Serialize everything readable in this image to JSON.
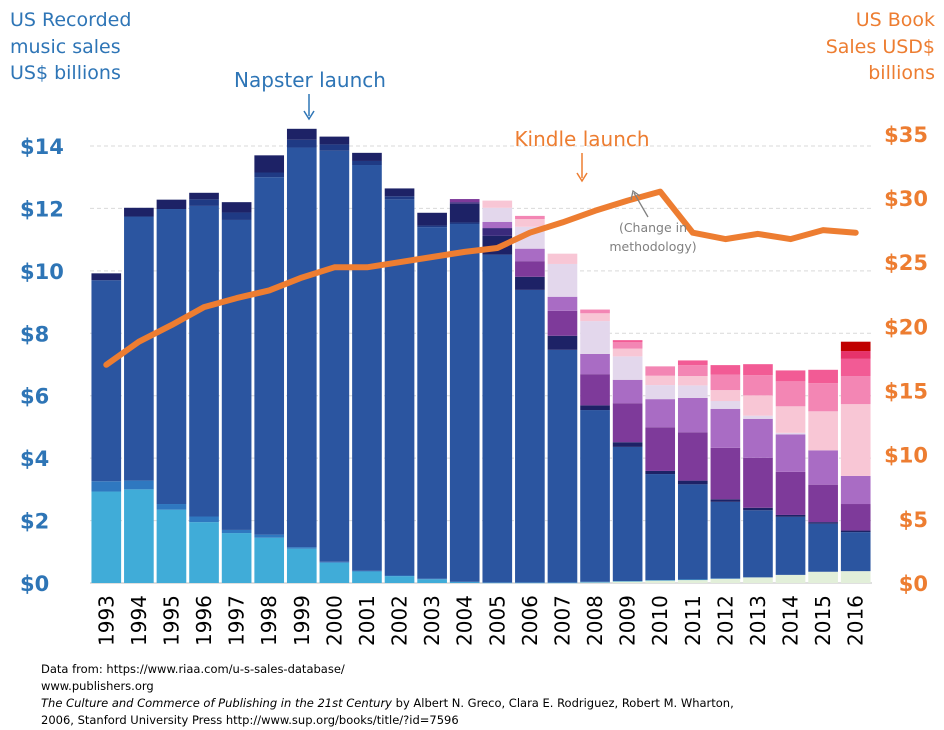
{
  "chart_data": {
    "type": "bar",
    "stacked": true,
    "dual_axis": true,
    "left_axis": {
      "title_lines": [
        "US Recorded",
        "music sales",
        "US$ billions"
      ],
      "ticks": [
        "$0",
        "$2",
        "$4",
        "$6",
        "$8",
        "$10",
        "$12",
        "$14"
      ],
      "ylim": [
        0,
        14.8
      ]
    },
    "right_axis": {
      "title_lines": [
        "US Book",
        "Sales USD$",
        "billions"
      ],
      "ticks": [
        "$0",
        "$5",
        "$10",
        "$15",
        "$20",
        "$25",
        "$30",
        "$35"
      ],
      "ylim": [
        0,
        36
      ]
    },
    "grid": true,
    "categories": [
      "1993",
      "1994",
      "1995",
      "1996",
      "1997",
      "1998",
      "1999",
      "2000",
      "2001",
      "2002",
      "2003",
      "2004",
      "2005",
      "2006",
      "2007",
      "2008",
      "2009",
      "2010",
      "2011",
      "2012",
      "2013",
      "2014",
      "2015",
      "2016"
    ],
    "segment_colors": [
      "#e2efd9",
      "#40acd8",
      "#2f78c0",
      "#2b55a0",
      "#1f3a84",
      "#1d2266",
      "#3a2a7c",
      "#7e3a9a",
      "#a96cc4",
      "#e3d7ec",
      "#f8c6d5",
      "#f386b4",
      "#f25b95",
      "#e6336b",
      "#c00000"
    ],
    "music_bars": [
      {
        "year": "1993",
        "segments": [
          [
            0,
            0
          ],
          [
            1,
            2.93
          ],
          [
            2,
            0.33
          ],
          [
            3,
            6.44
          ],
          [
            5,
            0.22
          ]
        ]
      },
      {
        "year": "1994",
        "segments": [
          [
            0,
            0
          ],
          [
            1,
            3.0
          ],
          [
            2,
            0.28
          ],
          [
            3,
            8.46
          ],
          [
            5,
            0.28
          ]
        ]
      },
      {
        "year": "1995",
        "segments": [
          [
            0,
            0
          ],
          [
            1,
            2.35
          ],
          [
            2,
            0.18
          ],
          [
            3,
            9.45
          ],
          [
            5,
            0.3
          ]
        ]
      },
      {
        "year": "1996",
        "segments": [
          [
            0,
            0
          ],
          [
            1,
            1.95
          ],
          [
            2,
            0.18
          ],
          [
            3,
            9.95
          ],
          [
            4,
            0.21
          ],
          [
            5,
            0.21
          ]
        ]
      },
      {
        "year": "1997",
        "segments": [
          [
            0,
            0
          ],
          [
            1,
            1.6
          ],
          [
            2,
            0.1
          ],
          [
            3,
            9.93
          ],
          [
            4,
            0.24
          ],
          [
            5,
            0.33
          ]
        ]
      },
      {
        "year": "1998",
        "segments": [
          [
            0,
            0
          ],
          [
            1,
            1.45
          ],
          [
            2,
            0.1
          ],
          [
            3,
            11.45
          ],
          [
            4,
            0.15
          ],
          [
            5,
            0.55
          ]
        ]
      },
      {
        "year": "1999",
        "segments": [
          [
            0,
            0
          ],
          [
            1,
            1.1
          ],
          [
            2,
            0.05
          ],
          [
            3,
            12.8
          ],
          [
            4,
            0.25
          ],
          [
            5,
            0.35
          ]
        ]
      },
      {
        "year": "2000",
        "segments": [
          [
            0,
            0
          ],
          [
            1,
            0.65
          ],
          [
            2,
            0.03
          ],
          [
            3,
            13.17
          ],
          [
            4,
            0.2
          ],
          [
            5,
            0.25
          ]
        ]
      },
      {
        "year": "2001",
        "segments": [
          [
            0,
            0
          ],
          [
            1,
            0.37
          ],
          [
            2,
            0.02
          ],
          [
            3,
            13.0
          ],
          [
            4,
            0.13
          ],
          [
            5,
            0.26
          ]
        ]
      },
      {
        "year": "2002",
        "segments": [
          [
            0,
            0
          ],
          [
            1,
            0.22
          ],
          [
            2,
            0.02
          ],
          [
            3,
            12.05
          ],
          [
            4,
            0.1
          ],
          [
            5,
            0.25
          ]
        ]
      },
      {
        "year": "2003",
        "segments": [
          [
            0,
            0
          ],
          [
            1,
            0.12
          ],
          [
            2,
            0.02
          ],
          [
            3,
            11.26
          ],
          [
            4,
            0.05
          ],
          [
            5,
            0.41
          ]
        ]
      },
      {
        "year": "2004",
        "segments": [
          [
            0,
            0
          ],
          [
            1,
            0.03
          ],
          [
            2,
            0.01
          ],
          [
            3,
            11.46
          ],
          [
            4,
            0.05
          ],
          [
            5,
            0.6
          ],
          [
            6,
            0.05
          ],
          [
            7,
            0.1
          ]
        ]
      },
      {
        "year": "2005",
        "segments": [
          [
            0,
            0
          ],
          [
            1,
            0.01
          ],
          [
            2,
            0.01
          ],
          [
            3,
            10.5
          ],
          [
            5,
            0.6
          ],
          [
            6,
            0.25
          ],
          [
            8,
            0.2
          ],
          [
            9,
            0.45
          ],
          [
            10,
            0.23
          ]
        ]
      },
      {
        "year": "2006",
        "segments": [
          [
            0,
            0
          ],
          [
            1,
            0.01
          ],
          [
            2,
            0.01
          ],
          [
            3,
            9.37
          ],
          [
            5,
            0.42
          ],
          [
            7,
            0.5
          ],
          [
            8,
            0.4
          ],
          [
            9,
            0.7
          ],
          [
            10,
            0.25
          ],
          [
            11,
            0.1
          ]
        ]
      },
      {
        "year": "2007",
        "segments": [
          [
            0,
            0
          ],
          [
            1,
            0.01
          ],
          [
            2,
            0.01
          ],
          [
            3,
            7.45
          ],
          [
            5,
            0.45
          ],
          [
            7,
            0.8
          ],
          [
            8,
            0.45
          ],
          [
            9,
            1.05
          ],
          [
            10,
            0.33
          ]
        ]
      },
      {
        "year": "2008",
        "segments": [
          [
            0,
            0.02
          ],
          [
            1,
            0.01
          ],
          [
            2,
            0.01
          ],
          [
            3,
            5.5
          ],
          [
            5,
            0.15
          ],
          [
            7,
            1.0
          ],
          [
            8,
            0.65
          ],
          [
            9,
            1.05
          ],
          [
            10,
            0.25
          ],
          [
            11,
            0.12
          ]
        ]
      },
      {
        "year": "2009",
        "segments": [
          [
            0,
            0.05
          ],
          [
            1,
            0.01
          ],
          [
            3,
            4.3
          ],
          [
            5,
            0.15
          ],
          [
            7,
            1.25
          ],
          [
            8,
            0.75
          ],
          [
            9,
            0.75
          ],
          [
            10,
            0.25
          ],
          [
            11,
            0.2
          ],
          [
            12,
            0.07
          ]
        ]
      },
      {
        "year": "2010",
        "segments": [
          [
            0,
            0.08
          ],
          [
            1,
            0.01
          ],
          [
            3,
            3.4
          ],
          [
            5,
            0.1
          ],
          [
            7,
            1.4
          ],
          [
            8,
            0.9
          ],
          [
            9,
            0.45
          ],
          [
            10,
            0.3
          ],
          [
            11,
            0.3
          ]
        ]
      },
      {
        "year": "2011",
        "segments": [
          [
            0,
            0.1
          ],
          [
            1,
            0.01
          ],
          [
            3,
            3.05
          ],
          [
            5,
            0.12
          ],
          [
            7,
            1.55
          ],
          [
            8,
            1.1
          ],
          [
            9,
            0.4
          ],
          [
            10,
            0.3
          ],
          [
            11,
            0.35
          ],
          [
            12,
            0.15
          ]
        ]
      },
      {
        "year": "2012",
        "segments": [
          [
            0,
            0.14
          ],
          [
            2,
            0.01
          ],
          [
            3,
            2.45
          ],
          [
            5,
            0.08
          ],
          [
            7,
            1.65
          ],
          [
            8,
            1.25
          ],
          [
            9,
            0.25
          ],
          [
            10,
            0.35
          ],
          [
            11,
            0.5
          ],
          [
            12,
            0.3
          ]
        ]
      },
      {
        "year": "2013",
        "segments": [
          [
            0,
            0.18
          ],
          [
            3,
            2.15
          ],
          [
            5,
            0.08
          ],
          [
            7,
            1.6
          ],
          [
            8,
            1.25
          ],
          [
            9,
            0.1
          ],
          [
            10,
            0.65
          ],
          [
            11,
            0.65
          ],
          [
            12,
            0.35
          ]
        ]
      },
      {
        "year": "2014",
        "segments": [
          [
            0,
            0.26
          ],
          [
            3,
            1.86
          ],
          [
            5,
            0.06
          ],
          [
            7,
            1.38
          ],
          [
            8,
            1.2
          ],
          [
            9,
            0.05
          ],
          [
            10,
            0.85
          ],
          [
            11,
            0.8
          ],
          [
            12,
            0.35
          ]
        ]
      },
      {
        "year": "2015",
        "segments": [
          [
            0,
            0.36
          ],
          [
            3,
            1.54
          ],
          [
            5,
            0.05
          ],
          [
            7,
            1.2
          ],
          [
            8,
            1.1
          ],
          [
            10,
            1.25
          ],
          [
            11,
            0.9
          ],
          [
            12,
            0.43
          ]
        ]
      },
      {
        "year": "2016",
        "segments": [
          [
            0,
            0.38
          ],
          [
            3,
            1.25
          ],
          [
            5,
            0.05
          ],
          [
            7,
            0.85
          ],
          [
            8,
            0.9
          ],
          [
            10,
            2.3
          ],
          [
            11,
            0.9
          ],
          [
            12,
            0.55
          ],
          [
            13,
            0.25
          ],
          [
            14,
            0.3
          ]
        ]
      }
    ],
    "book_sales": {
      "x": [
        "1993",
        "1994",
        "1995",
        "1996",
        "1997",
        "1998",
        "1999",
        "2000",
        "2001",
        "2002",
        "2003",
        "2004",
        "2005",
        "2006",
        "2007",
        "2008",
        "2009",
        "2010",
        "2011",
        "2012",
        "2013",
        "2014",
        "2015",
        "2016"
      ],
      "values": [
        17.0,
        18.8,
        20.1,
        21.5,
        22.2,
        22.8,
        23.8,
        24.6,
        24.6,
        25.0,
        25.4,
        25.8,
        26.1,
        27.3,
        28.1,
        29.0,
        29.8,
        30.5,
        27.3,
        26.8,
        27.2,
        26.8,
        27.5,
        27.3
      ],
      "color": "#ed7d31"
    },
    "annotations": [
      {
        "text": "Napster launch",
        "year": "1999",
        "color": "#2e75b6"
      },
      {
        "text": "Kindle launch",
        "year": "2007",
        "color": "#ed7d31"
      },
      {
        "text_lines": [
          "(Change in",
          "methodology)"
        ],
        "year": "2010",
        "color": "#808080"
      }
    ]
  },
  "sources": {
    "line1": "Data from: https://www.riaa.com/u-s-sales-database/",
    "line2": "www.publishers.org",
    "line3_italic": "The Culture and Commerce of Publishing  in the 21st Century",
    "line3_rest": " by Albert N. Greco, Clara E. Rodriguez, Robert M. Wharton,",
    "line4": "2006, Stanford University Press http://www.sup.org/books/title/?id=7596"
  }
}
